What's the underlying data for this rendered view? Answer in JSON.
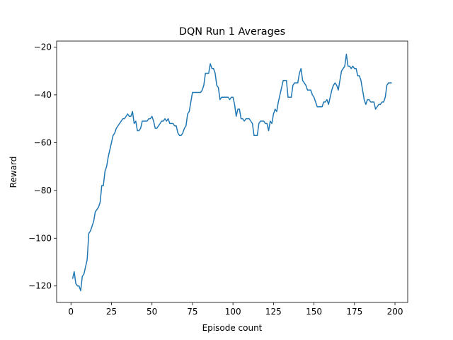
{
  "chart_data": {
    "type": "line",
    "title": "DQN Run 1 Averages",
    "x_label": "Episode count",
    "y_label": "Reward",
    "xlim": [
      -8.85,
      207.85
    ],
    "ylim": [
      -126.9,
      -17.5
    ],
    "xticks": [
      0,
      25,
      50,
      75,
      100,
      125,
      150,
      175,
      200
    ],
    "yticks": [
      {
        "value": -20,
        "label": "−20"
      },
      {
        "value": -40,
        "label": "−40"
      },
      {
        "value": -60,
        "label": "−60"
      },
      {
        "value": -80,
        "label": "−80"
      },
      {
        "value": -100,
        "label": "−100"
      },
      {
        "value": -120,
        "label": "−120"
      }
    ],
    "color": "#1f77b4",
    "grid": false,
    "x": [
      1,
      2,
      3,
      4,
      5,
      6,
      7,
      8,
      9,
      10,
      11,
      12,
      13,
      14,
      15,
      16,
      17,
      18,
      19,
      20,
      21,
      22,
      23,
      24,
      25,
      26,
      27,
      28,
      29,
      30,
      31,
      32,
      33,
      34,
      35,
      36,
      37,
      38,
      39,
      40,
      41,
      42,
      43,
      44,
      45,
      46,
      47,
      48,
      49,
      50,
      51,
      52,
      53,
      54,
      55,
      56,
      57,
      58,
      59,
      60,
      61,
      62,
      63,
      64,
      65,
      66,
      67,
      68,
      69,
      70,
      71,
      72,
      73,
      74,
      75,
      76,
      77,
      78,
      79,
      80,
      81,
      82,
      83,
      84,
      85,
      86,
      87,
      88,
      89,
      90,
      91,
      92,
      93,
      94,
      95,
      96,
      97,
      98,
      99,
      100,
      101,
      102,
      103,
      104,
      105,
      106,
      107,
      108,
      109,
      110,
      111,
      112,
      113,
      114,
      115,
      116,
      117,
      118,
      119,
      120,
      121,
      122,
      123,
      124,
      125,
      126,
      127,
      128,
      129,
      130,
      131,
      132,
      133,
      134,
      135,
      136,
      137,
      138,
      139,
      140,
      141,
      142,
      143,
      144,
      145,
      146,
      147,
      148,
      149,
      150,
      151,
      152,
      153,
      154,
      155,
      156,
      157,
      158,
      159,
      160,
      161,
      162,
      163,
      164,
      165,
      166,
      167,
      168,
      169,
      170,
      171,
      172,
      173,
      174,
      175,
      176,
      177,
      178,
      179,
      180,
      181,
      182,
      183,
      184,
      185,
      186,
      187,
      188,
      189,
      190,
      191,
      192,
      193,
      194,
      195,
      196,
      197,
      198
    ],
    "values": [
      -117,
      -114,
      -119,
      -120,
      -120,
      -122,
      -116,
      -115,
      -112,
      -109,
      -98,
      -97,
      -95,
      -93,
      -89,
      -88,
      -87,
      -85,
      -78,
      -78,
      -72,
      -70,
      -66,
      -63,
      -60,
      -57,
      -56,
      -54,
      -53,
      -52,
      -51,
      -50,
      -50,
      -49,
      -48,
      -49,
      -49,
      -47,
      -52,
      -51,
      -55,
      -55,
      -54,
      -51,
      -51,
      -51,
      -51,
      -50,
      -50,
      -49,
      -51,
      -54,
      -54,
      -53,
      -52,
      -51,
      -51,
      -50,
      -51,
      -50,
      -52,
      -52,
      -52,
      -53,
      -53,
      -56,
      -57,
      -57,
      -56,
      -54,
      -53,
      -48,
      -47,
      -43,
      -39,
      -39,
      -39,
      -39,
      -39,
      -39,
      -38,
      -36,
      -31,
      -31,
      -31,
      -27,
      -29,
      -29,
      -31,
      -36,
      -37,
      -42,
      -41,
      -41,
      -41,
      -41,
      -41,
      -42,
      -41,
      -41,
      -44,
      -49,
      -46,
      -46,
      -50,
      -50,
      -51,
      -50,
      -50,
      -50,
      -51,
      -52,
      -57,
      -57,
      -57,
      -52,
      -51,
      -51,
      -51,
      -52,
      -52,
      -55,
      -51,
      -52,
      -48,
      -46,
      -47,
      -43,
      -40,
      -37,
      -34,
      -34,
      -34,
      -41,
      -41,
      -41,
      -36,
      -35,
      -35,
      -35,
      -31,
      -29,
      -34,
      -35,
      -36,
      -38,
      -38,
      -38,
      -40,
      -41,
      -43,
      -45,
      -45,
      -45,
      -45,
      -43,
      -43,
      -42,
      -44,
      -41,
      -38,
      -36,
      -35,
      -36,
      -38,
      -34,
      -30,
      -29,
      -28,
      -23,
      -28,
      -28,
      -29,
      -28,
      -29,
      -29,
      -32,
      -32,
      -34,
      -38,
      -42,
      -44,
      -42,
      -42,
      -43,
      -43,
      -43,
      -46,
      -45,
      -44,
      -44,
      -43,
      -43,
      -41,
      -36,
      -35,
      -35,
      -35
    ]
  }
}
